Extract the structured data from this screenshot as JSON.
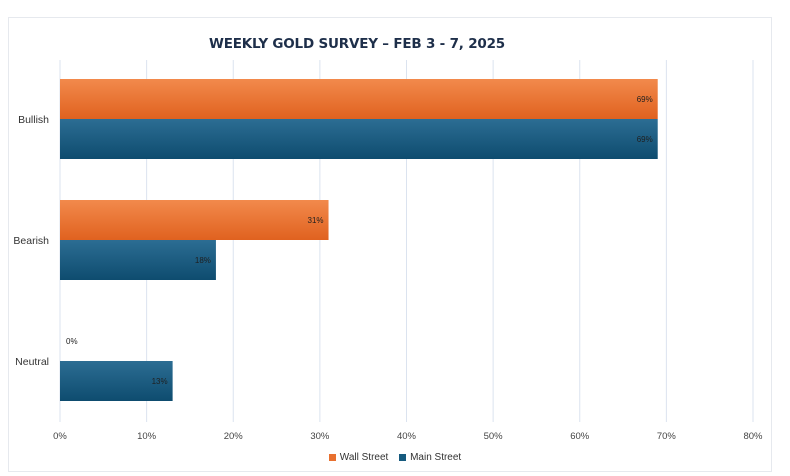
{
  "chart_data": {
    "type": "bar",
    "orientation": "horizontal",
    "title": "WEEKLY GOLD SURVEY – FEB 3 - 7, 2025",
    "categories": [
      "Bullish",
      "Bearish",
      "Neutral"
    ],
    "series": [
      {
        "name": "Wall Street",
        "values": [
          69,
          31,
          0
        ],
        "labels": [
          "69%",
          "31%",
          "0%"
        ],
        "color": "#e8702f"
      },
      {
        "name": "Main Street",
        "values": [
          69,
          18,
          13
        ],
        "labels": [
          "69%",
          "18%",
          "13%"
        ],
        "color": "#165a7e"
      }
    ],
    "xlim": [
      0,
      80
    ],
    "ticks": [
      0,
      10,
      20,
      30,
      40,
      50,
      60,
      70,
      80
    ],
    "tick_labels": [
      "0%",
      "10%",
      "20%",
      "30%",
      "40%",
      "50%",
      "60%",
      "70%",
      "80%"
    ],
    "grid": true,
    "legend_position": "bottom"
  }
}
